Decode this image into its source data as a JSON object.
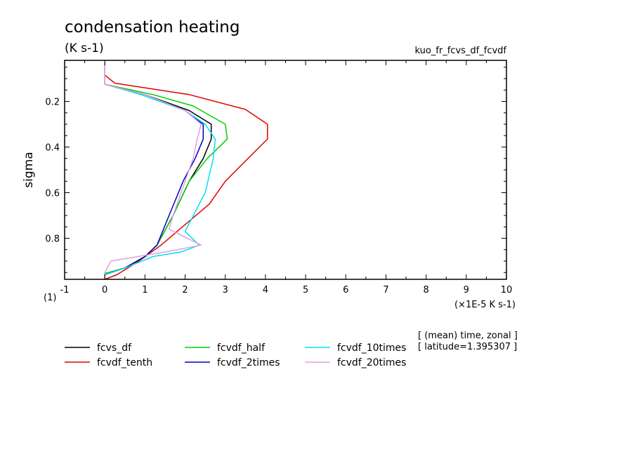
{
  "chart_data": {
    "type": "line",
    "title": "condensation heating",
    "subtitle": "(K s-1)",
    "experiment": "kuo_fr_fcvs_df_fcvdf",
    "ylabel": "sigma",
    "xlabel": "(×1E-5 K s-1)",
    "x_scale_note": "(1)",
    "xlim": [
      -1,
      10
    ],
    "ylim": [
      0.98,
      0.02
    ],
    "xticks": [
      -1,
      0,
      1,
      2,
      3,
      4,
      5,
      6,
      7,
      8,
      9,
      10
    ],
    "yticks": [
      0.2,
      0.4,
      0.6,
      0.8
    ],
    "xtick_labels": [
      "-1",
      "0",
      "1",
      "2",
      "3",
      "4",
      "5",
      "6",
      "7",
      "8",
      "9",
      "10"
    ],
    "ytick_labels": [
      "0.2",
      "0.4",
      "0.6",
      "0.8"
    ],
    "y_inverted": true,
    "legend_placement": "below",
    "annotation_lines": [
      "[ (mean) time, zonal ]",
      "[ latitude=1.395307 ]"
    ],
    "series": [
      {
        "name": "fcvs_df",
        "color": "#000000",
        "points": [
          [
            0,
            0.03
          ],
          [
            0,
            0.125
          ],
          [
            1.0,
            0.17
          ],
          [
            2.1,
            0.24
          ],
          [
            2.65,
            0.3
          ],
          [
            2.65,
            0.365
          ],
          [
            2.45,
            0.45
          ],
          [
            2.1,
            0.55
          ],
          [
            1.7,
            0.7
          ],
          [
            1.3,
            0.83
          ],
          [
            1.0,
            0.88
          ],
          [
            0.5,
            0.93
          ],
          [
            0,
            0.955
          ],
          [
            0,
            0.98
          ]
        ]
      },
      {
        "name": "fcvdf_tenth",
        "color": "#e00000",
        "points": [
          [
            0,
            0.085
          ],
          [
            0.25,
            0.12
          ],
          [
            2.1,
            0.17
          ],
          [
            3.5,
            0.235
          ],
          [
            4.05,
            0.3
          ],
          [
            4.05,
            0.365
          ],
          [
            3.0,
            0.55
          ],
          [
            2.6,
            0.65
          ],
          [
            1.4,
            0.83
          ],
          [
            0.85,
            0.9
          ],
          [
            0.3,
            0.96
          ],
          [
            0,
            0.98
          ]
        ]
      },
      {
        "name": "fcvdf_half",
        "color": "#00d000",
        "points": [
          [
            0,
            0.03
          ],
          [
            0,
            0.125
          ],
          [
            1.2,
            0.17
          ],
          [
            2.2,
            0.22
          ],
          [
            3.0,
            0.3
          ],
          [
            3.05,
            0.365
          ],
          [
            2.55,
            0.45
          ],
          [
            2.1,
            0.55
          ],
          [
            1.7,
            0.7
          ],
          [
            1.3,
            0.83
          ],
          [
            1.0,
            0.88
          ],
          [
            0.5,
            0.93
          ],
          [
            0,
            0.955
          ],
          [
            0,
            0.98
          ]
        ]
      },
      {
        "name": "fcvdf_2times",
        "color": "#0000c0",
        "points": [
          [
            0,
            0.03
          ],
          [
            0,
            0.125
          ],
          [
            1.0,
            0.17
          ],
          [
            2.0,
            0.24
          ],
          [
            2.45,
            0.3
          ],
          [
            2.45,
            0.365
          ],
          [
            2.25,
            0.45
          ],
          [
            1.95,
            0.55
          ],
          [
            1.6,
            0.7
          ],
          [
            1.3,
            0.83
          ],
          [
            1.0,
            0.88
          ],
          [
            0.5,
            0.93
          ],
          [
            0,
            0.96
          ],
          [
            0,
            0.98
          ]
        ]
      },
      {
        "name": "fcvdf_10times",
        "color": "#00e0f0",
        "points": [
          [
            0,
            0.03
          ],
          [
            0,
            0.125
          ],
          [
            0.9,
            0.17
          ],
          [
            2.0,
            0.24
          ],
          [
            2.5,
            0.3
          ],
          [
            2.75,
            0.365
          ],
          [
            2.7,
            0.45
          ],
          [
            2.5,
            0.6
          ],
          [
            2.0,
            0.77
          ],
          [
            2.35,
            0.83
          ],
          [
            1.9,
            0.86
          ],
          [
            1.2,
            0.88
          ],
          [
            0.5,
            0.93
          ],
          [
            0,
            0.96
          ],
          [
            0,
            0.98
          ]
        ]
      },
      {
        "name": "fcvdf_20times",
        "color": "#e0a0e0",
        "points": [
          [
            0,
            0.03
          ],
          [
            0,
            0.125
          ],
          [
            1.0,
            0.17
          ],
          [
            2.0,
            0.24
          ],
          [
            2.4,
            0.3
          ],
          [
            2.3,
            0.365
          ],
          [
            2.2,
            0.45
          ],
          [
            2.0,
            0.55
          ],
          [
            1.7,
            0.7
          ],
          [
            1.6,
            0.76
          ],
          [
            2.4,
            0.83
          ],
          [
            1.5,
            0.86
          ],
          [
            0.15,
            0.9
          ],
          [
            0,
            0.95
          ],
          [
            0,
            0.98
          ]
        ]
      }
    ]
  }
}
